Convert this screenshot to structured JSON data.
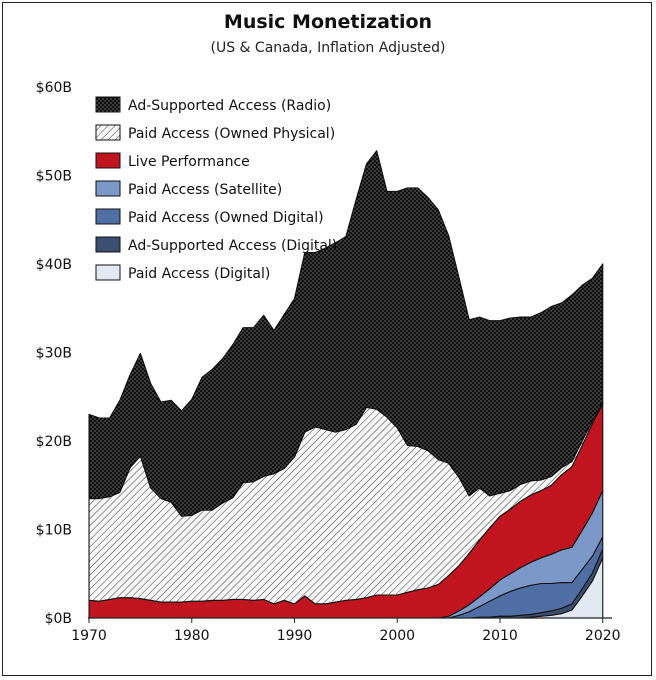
{
  "chart_data": {
    "type": "area",
    "stacked": true,
    "title": "Music Monetization",
    "subtitle": "(US & Canada, Inflation Adjusted)",
    "xlabel": "",
    "ylabel": "",
    "xlim": [
      1969.9,
      2020.9
    ],
    "ylim": [
      0,
      60
    ],
    "xticks": [
      1970,
      1980,
      1990,
      2000,
      2010,
      2020
    ],
    "xtick_labels": [
      "1970",
      "1980",
      "1990",
      "2000",
      "2010",
      "2020"
    ],
    "yticks": [
      0,
      10,
      20,
      30,
      40,
      50,
      60
    ],
    "ytick_labels": [
      "$0B",
      "$10B",
      "$20B",
      "$30B",
      "$40B",
      "$50B",
      "$60B"
    ],
    "grid": false,
    "legend_position": "top-left",
    "x": [
      1970,
      1971,
      1972,
      1973,
      1974,
      1975,
      1976,
      1977,
      1978,
      1979,
      1980,
      1981,
      1982,
      1983,
      1984,
      1985,
      1986,
      1987,
      1988,
      1989,
      1990,
      1991,
      1992,
      1993,
      1994,
      1995,
      1996,
      1997,
      1998,
      1999,
      2000,
      2001,
      2002,
      2003,
      2004,
      2005,
      2006,
      2007,
      2008,
      2009,
      2010,
      2011,
      2012,
      2013,
      2014,
      2015,
      2016,
      2017,
      2018,
      2019,
      2020
    ],
    "totals": [
      23.0,
      22.6,
      22.6,
      24.6,
      27.5,
      29.9,
      26.5,
      24.4,
      24.6,
      23.4,
      24.7,
      27.2,
      28.1,
      29.3,
      30.9,
      32.8,
      32.8,
      34.2,
      32.5,
      34.3,
      36.1,
      41.3,
      41.3,
      41.8,
      42.4,
      43.1,
      47.3,
      51.3,
      52.8,
      48.2,
      48.2,
      48.6,
      48.6,
      47.5,
      46.1,
      43.2,
      38.5,
      33.7,
      34.0,
      33.6,
      33.6,
      33.9,
      34.0,
      34.0,
      34.5,
      35.2,
      35.6,
      36.5,
      37.6,
      38.4,
      40.0
    ],
    "series": [
      {
        "name": "Paid Access (Digital)",
        "color": "#e3e9f2",
        "values": [
          0,
          0,
          0,
          0,
          0,
          0,
          0,
          0,
          0,
          0,
          0,
          0,
          0,
          0,
          0,
          0,
          0,
          0,
          0,
          0,
          0,
          0,
          0,
          0,
          0,
          0,
          0,
          0,
          0,
          0,
          0,
          0,
          0,
          0,
          0,
          0,
          0,
          0,
          0,
          0,
          0,
          0,
          0,
          0.1,
          0.2,
          0.3,
          0.5,
          0.9,
          2.5,
          4.2,
          6.8
        ]
      },
      {
        "name": "Ad-Supported Access (Digital)",
        "color": "#3b4f73",
        "values": [
          0,
          0,
          0,
          0,
          0,
          0,
          0,
          0,
          0,
          0,
          0,
          0,
          0,
          0,
          0,
          0,
          0,
          0,
          0,
          0,
          0,
          0,
          0,
          0,
          0,
          0,
          0,
          0,
          0,
          0,
          0,
          0,
          0,
          0,
          0,
          0,
          0,
          0,
          0.1,
          0.1,
          0.2,
          0.2,
          0.3,
          0.3,
          0.4,
          0.5,
          0.6,
          0.7,
          0.8,
          0.9,
          1.0
        ]
      },
      {
        "name": "Paid Access (Owned Digital)",
        "color": "#4f6fa4",
        "values": [
          0,
          0,
          0,
          0,
          0,
          0,
          0,
          0,
          0,
          0,
          0,
          0,
          0,
          0,
          0,
          0,
          0,
          0,
          0,
          0,
          0,
          0,
          0,
          0,
          0,
          0,
          0,
          0,
          0,
          0,
          0,
          0,
          0,
          0,
          0,
          0,
          0.3,
          0.7,
          1.2,
          1.8,
          2.3,
          2.8,
          3.1,
          3.3,
          3.3,
          3.1,
          2.9,
          2.4,
          2.2,
          1.9,
          1.4
        ]
      },
      {
        "name": "Paid Access (Satellite)",
        "color": "#7b98c8",
        "values": [
          0,
          0,
          0,
          0,
          0,
          0,
          0,
          0,
          0,
          0,
          0,
          0,
          0,
          0,
          0,
          0,
          0,
          0,
          0,
          0,
          0,
          0,
          0,
          0,
          0,
          0,
          0,
          0,
          0,
          0,
          0,
          0,
          0,
          0,
          0,
          0.2,
          0.5,
          0.8,
          1.1,
          1.4,
          1.8,
          2.0,
          2.3,
          2.6,
          2.9,
          3.3,
          3.7,
          4.0,
          4.4,
          4.9,
          5.2
        ]
      },
      {
        "name": "Live Performance",
        "color": "#c0141f",
        "values": [
          2.0,
          1.9,
          2.1,
          2.3,
          2.3,
          2.2,
          2.0,
          1.8,
          1.8,
          1.8,
          1.9,
          1.9,
          2.0,
          2.0,
          2.1,
          2.1,
          2.0,
          2.1,
          1.6,
          2.0,
          1.6,
          2.5,
          1.6,
          1.6,
          1.8,
          2.0,
          2.1,
          2.3,
          2.6,
          2.6,
          2.6,
          2.9,
          3.2,
          3.4,
          3.8,
          4.6,
          5.1,
          5.8,
          6.4,
          6.9,
          7.2,
          7.3,
          7.5,
          7.6,
          7.6,
          7.8,
          8.5,
          9.1,
          9.6,
          10.1,
          9.8
        ]
      },
      {
        "name": "Paid Access (Owned Physical)",
        "color": "#f5f5f5",
        "pattern": "diagonal-hatch",
        "values": [
          11.5,
          11.6,
          11.6,
          11.9,
          14.7,
          16.1,
          12.7,
          11.7,
          11.3,
          9.7,
          9.7,
          10.3,
          10.2,
          11.0,
          11.5,
          13.2,
          13.4,
          13.9,
          14.7,
          14.9,
          16.6,
          18.5,
          20.0,
          19.7,
          19.2,
          19.3,
          19.8,
          21.5,
          21.0,
          20.1,
          18.9,
          16.6,
          16.2,
          15.5,
          14.1,
          12.7,
          10.0,
          6.5,
          5.9,
          3.6,
          2.6,
          2.1,
          1.9,
          1.6,
          1.2,
          1.0,
          0.8,
          0.6,
          0.5,
          0.3,
          0.2
        ]
      },
      {
        "name": "Ad-Supported Access (Radio)",
        "color": "#111111",
        "pattern": "dotted",
        "values": [
          9.5,
          9.1,
          8.9,
          10.4,
          10.5,
          11.6,
          11.8,
          10.9,
          11.5,
          11.9,
          13.1,
          15.0,
          15.9,
          16.3,
          17.3,
          17.5,
          17.4,
          18.2,
          16.2,
          17.4,
          17.9,
          20.3,
          19.7,
          20.5,
          21.4,
          21.8,
          25.4,
          27.5,
          29.2,
          25.5,
          26.7,
          29.1,
          29.2,
          28.6,
          28.2,
          25.7,
          22.6,
          19.9,
          19.3,
          19.8,
          19.5,
          19.5,
          18.9,
          18.5,
          18.9,
          19.2,
          18.6,
          18.8,
          17.6,
          16.1,
          15.6
        ]
      }
    ],
    "legend_order": [
      "Ad-Supported Access (Radio)",
      "Paid Access (Owned Physical)",
      "Live Performance",
      "Paid Access (Satellite)",
      "Paid Access (Owned Digital)",
      "Ad-Supported Access (Digital)",
      "Paid Access (Digital)"
    ]
  }
}
